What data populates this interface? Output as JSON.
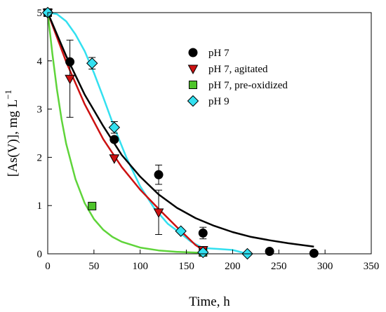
{
  "chart_data": {
    "type": "scatter",
    "xlabel": "Time, h",
    "ylabel": "[As(V)], mg L",
    "ylabel_superscript": "−1",
    "xlim": [
      0,
      350
    ],
    "ylim": [
      0,
      5
    ],
    "xticks": [
      0,
      50,
      100,
      150,
      200,
      250,
      300,
      350
    ],
    "yticks": [
      0,
      1,
      2,
      3,
      4,
      5
    ],
    "grid": false,
    "legend_position": "top-right",
    "series": [
      {
        "name": "pH 7",
        "marker": "circle",
        "color": "#000000",
        "curve_color": "#000000",
        "points": [
          {
            "x": 0,
            "y": 5.0
          },
          {
            "x": 24,
            "y": 3.98
          },
          {
            "x": 72,
            "y": 2.37
          },
          {
            "x": 120,
            "y": 1.64,
            "err": 0.2
          },
          {
            "x": 168,
            "y": 0.43,
            "err": 0.12
          },
          {
            "x": 240,
            "y": 0.05
          },
          {
            "x": 288,
            "y": 0.01
          }
        ],
        "curve": [
          {
            "x": 0,
            "y": 5.0
          },
          {
            "x": 20,
            "y": 4.1
          },
          {
            "x": 40,
            "y": 3.3
          },
          {
            "x": 60,
            "y": 2.65
          },
          {
            "x": 80,
            "y": 2.05
          },
          {
            "x": 100,
            "y": 1.6
          },
          {
            "x": 120,
            "y": 1.23
          },
          {
            "x": 140,
            "y": 0.95
          },
          {
            "x": 160,
            "y": 0.74
          },
          {
            "x": 180,
            "y": 0.58
          },
          {
            "x": 200,
            "y": 0.45
          },
          {
            "x": 220,
            "y": 0.35
          },
          {
            "x": 240,
            "y": 0.28
          },
          {
            "x": 260,
            "y": 0.22
          },
          {
            "x": 288,
            "y": 0.15
          }
        ]
      },
      {
        "name": "pH 7, agitated",
        "marker": "triangle-down",
        "color": "#cc1111",
        "curve_color": "#cc1111",
        "points": [
          {
            "x": 0,
            "y": 5.0
          },
          {
            "x": 24,
            "y": 3.63,
            "err": 0.8
          },
          {
            "x": 72,
            "y": 1.98
          },
          {
            "x": 120,
            "y": 0.86,
            "err": 0.46
          },
          {
            "x": 168,
            "y": 0.08
          }
        ],
        "curve": [
          {
            "x": 0,
            "y": 5.0
          },
          {
            "x": 20,
            "y": 3.98
          },
          {
            "x": 40,
            "y": 3.1
          },
          {
            "x": 60,
            "y": 2.38
          },
          {
            "x": 80,
            "y": 1.8
          },
          {
            "x": 100,
            "y": 1.33
          },
          {
            "x": 120,
            "y": 0.93
          },
          {
            "x": 140,
            "y": 0.55
          },
          {
            "x": 160,
            "y": 0.18
          },
          {
            "x": 168,
            "y": 0.08
          }
        ]
      },
      {
        "name": "pH 7, pre-oxidized",
        "marker": "square",
        "color": "#4ec42a",
        "curve_color": "#5fd43a",
        "points": [
          {
            "x": 0,
            "y": 5.0
          },
          {
            "x": 48,
            "y": 0.99
          },
          {
            "x": 168,
            "y": 0.03
          }
        ],
        "curve": [
          {
            "x": 0,
            "y": 5.0
          },
          {
            "x": 5,
            "y": 4.15
          },
          {
            "x": 10,
            "y": 3.4
          },
          {
            "x": 15,
            "y": 2.78
          },
          {
            "x": 20,
            "y": 2.28
          },
          {
            "x": 30,
            "y": 1.55
          },
          {
            "x": 40,
            "y": 1.05
          },
          {
            "x": 50,
            "y": 0.72
          },
          {
            "x": 60,
            "y": 0.5
          },
          {
            "x": 70,
            "y": 0.35
          },
          {
            "x": 80,
            "y": 0.25
          },
          {
            "x": 100,
            "y": 0.13
          },
          {
            "x": 120,
            "y": 0.07
          },
          {
            "x": 140,
            "y": 0.04
          },
          {
            "x": 168,
            "y": 0.02
          }
        ]
      },
      {
        "name": "pH 9",
        "marker": "diamond",
        "color": "#33e0f0",
        "curve_color": "#33e0f0",
        "points": [
          {
            "x": 0,
            "y": 5.0
          },
          {
            "x": 48,
            "y": 3.95,
            "err": 0.12
          },
          {
            "x": 72,
            "y": 2.62,
            "err": 0.12
          },
          {
            "x": 144,
            "y": 0.47
          },
          {
            "x": 168,
            "y": 0.03
          },
          {
            "x": 216,
            "y": 0.0
          }
        ],
        "curve": [
          {
            "x": 0,
            "y": 5.0
          },
          {
            "x": 10,
            "y": 4.97
          },
          {
            "x": 20,
            "y": 4.82
          },
          {
            "x": 30,
            "y": 4.55
          },
          {
            "x": 40,
            "y": 4.2
          },
          {
            "x": 50,
            "y": 3.75
          },
          {
            "x": 60,
            "y": 3.25
          },
          {
            "x": 72,
            "y": 2.62
          },
          {
            "x": 85,
            "y": 2.0
          },
          {
            "x": 100,
            "y": 1.4
          },
          {
            "x": 115,
            "y": 0.95
          },
          {
            "x": 130,
            "y": 0.62
          },
          {
            "x": 144,
            "y": 0.42
          },
          {
            "x": 155,
            "y": 0.25
          },
          {
            "x": 168,
            "y": 0.12
          },
          {
            "x": 185,
            "y": 0.1
          },
          {
            "x": 200,
            "y": 0.08
          },
          {
            "x": 216,
            "y": 0.0
          }
        ]
      }
    ]
  }
}
